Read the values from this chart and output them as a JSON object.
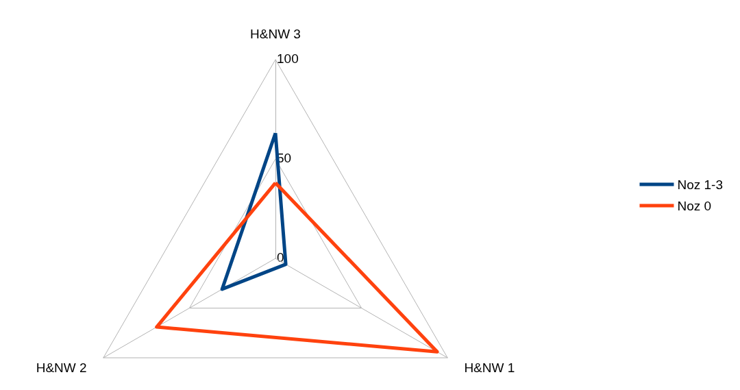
{
  "chart_data": {
    "type": "radar",
    "categories": [
      "H&NW 3",
      "H&NW 1",
      "H&NW 2"
    ],
    "series": [
      {
        "name": "Noz 1-3",
        "color": "#004586",
        "values": [
          63,
          6,
          31
        ]
      },
      {
        "name": "Noz 0",
        "color": "#ff420e",
        "values": [
          38,
          94,
          69
        ]
      }
    ],
    "ylim": [
      0,
      100
    ],
    "yticks": [
      0,
      50,
      100
    ],
    "grid": true,
    "legend": "right",
    "marker": "none"
  }
}
